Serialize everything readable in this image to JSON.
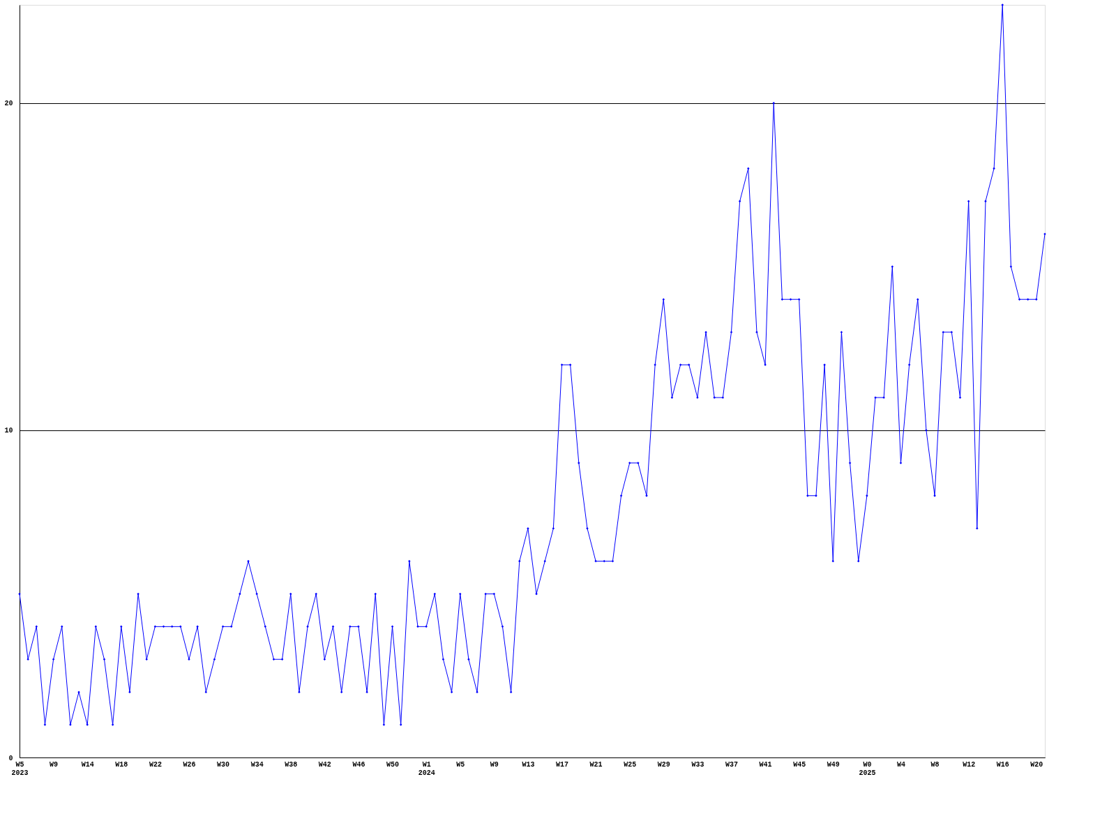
{
  "chart_data": {
    "type": "line",
    "categories": [
      "W5\n2023",
      null,
      null,
      null,
      "W9",
      null,
      null,
      null,
      "W14",
      null,
      null,
      null,
      "W18",
      null,
      null,
      null,
      "W22",
      null,
      null,
      null,
      "W26",
      null,
      null,
      null,
      "W30",
      null,
      null,
      null,
      "W34",
      null,
      null,
      null,
      "W38",
      null,
      null,
      null,
      "W42",
      null,
      null,
      null,
      "W46",
      null,
      null,
      null,
      "W50",
      null,
      null,
      null,
      "W1\n2024",
      null,
      null,
      null,
      "W5",
      null,
      null,
      null,
      "W9",
      null,
      null,
      null,
      "W13",
      null,
      null,
      null,
      "W17",
      null,
      null,
      null,
      "W21",
      null,
      null,
      null,
      "W25",
      null,
      null,
      null,
      "W29",
      null,
      null,
      null,
      "W33",
      null,
      null,
      null,
      "W37",
      null,
      null,
      null,
      "W41",
      null,
      null,
      null,
      "W45",
      null,
      null,
      null,
      "W49",
      null,
      null,
      null,
      "W0\n2025",
      null,
      null,
      null,
      "W4",
      null,
      null,
      null,
      "W8",
      null,
      null,
      null,
      "W12",
      null,
      null,
      null,
      "W16",
      null,
      null,
      null,
      "W20",
      null
    ],
    "values": [
      5,
      3,
      4,
      1,
      3,
      4,
      1,
      2,
      1,
      4,
      3,
      1,
      4,
      2,
      5,
      3,
      4,
      4,
      4,
      4,
      3,
      4,
      2,
      3,
      4,
      4,
      5,
      6,
      5,
      4,
      3,
      3,
      5,
      2,
      4,
      5,
      3,
      4,
      2,
      4,
      4,
      2,
      5,
      1,
      4,
      1,
      6,
      4,
      4,
      5,
      3,
      2,
      5,
      3,
      2,
      5,
      5,
      4,
      2,
      6,
      7,
      5,
      6,
      7,
      12,
      12,
      9,
      7,
      6,
      6,
      6,
      8,
      9,
      9,
      8,
      12,
      14,
      11,
      12,
      12,
      11,
      13,
      11,
      11,
      13,
      17,
      18,
      13,
      12,
      20,
      14,
      14,
      14,
      8,
      8,
      12,
      6,
      13,
      9,
      6,
      8,
      11,
      11,
      15,
      9,
      12,
      14,
      10,
      8,
      13,
      13,
      11,
      17,
      7,
      17,
      18,
      23,
      15,
      14,
      14,
      14,
      16
    ],
    "color": "#0000ff",
    "ylim": [
      0,
      23
    ],
    "yticks": [
      0,
      10,
      20
    ],
    "grid": "y",
    "marker": "diamond",
    "line_style": "solid"
  }
}
